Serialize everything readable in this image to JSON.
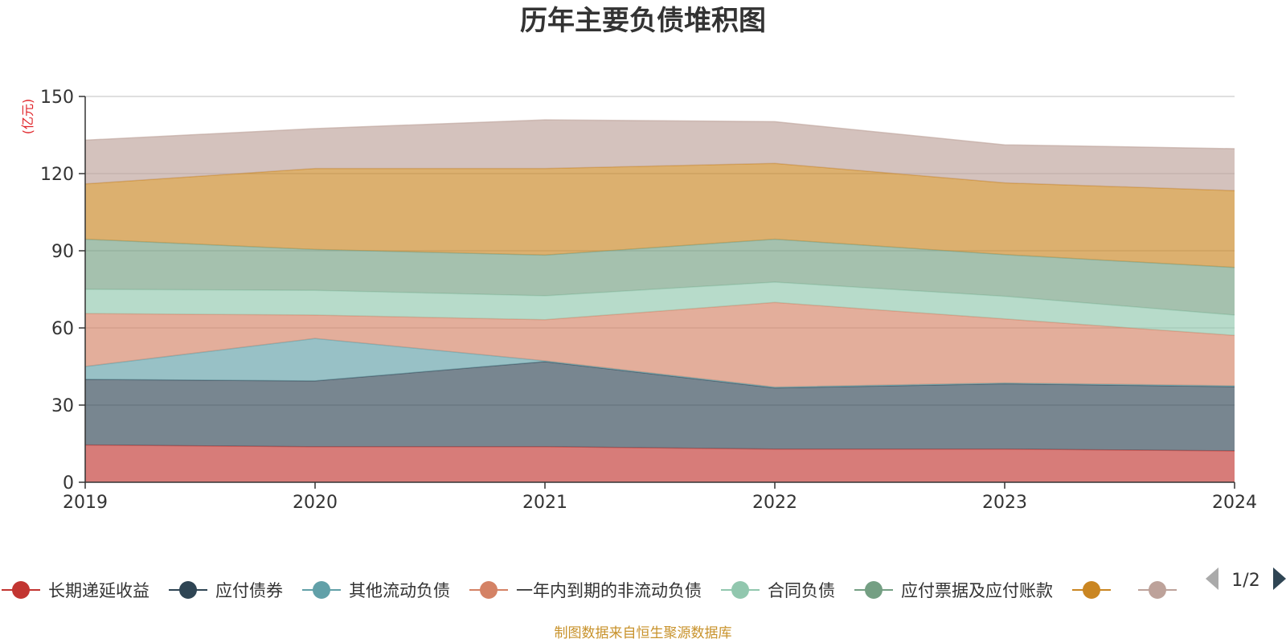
{
  "chart_data": {
    "type": "area",
    "title": "历年主要负债堆积图",
    "unit_label": "(亿元)",
    "source": "制图数据来自恒生聚源数据库",
    "x": [
      "2019",
      "2020",
      "2021",
      "2022",
      "2023",
      "2024"
    ],
    "ylim": [
      0,
      150
    ],
    "yticks": [
      0,
      30,
      60,
      90,
      120,
      150
    ],
    "stacked": true,
    "grid": true,
    "legend_position": "bottom",
    "legend_page": "1/2",
    "series": [
      {
        "name": "长期递延收益",
        "color": "#c23531",
        "values": [
          14.5,
          13.8,
          13.8,
          12.9,
          12.9,
          12.2
        ]
      },
      {
        "name": "应付债券",
        "color": "#2f4554",
        "values": [
          25.5,
          25.6,
          33.1,
          23.8,
          25.4,
          25.0
        ]
      },
      {
        "name": "其他流动负债",
        "color": "#61a0a8",
        "values": [
          5.0,
          16.5,
          0.3,
          0.3,
          0.3,
          0.3
        ]
      },
      {
        "name": "一年内到期的非流动负债",
        "color": "#d48265",
        "values": [
          20.6,
          9.1,
          16.0,
          32.9,
          24.9,
          19.6
        ]
      },
      {
        "name": "合同负债",
        "color": "#91c7ae",
        "values": [
          9.4,
          9.6,
          9.3,
          7.9,
          8.8,
          7.9
        ]
      },
      {
        "name": "应付票据及应付账款",
        "color": "#749f83",
        "values": [
          19.5,
          15.9,
          15.8,
          16.7,
          16.2,
          18.5
        ]
      },
      {
        "name": "",
        "color": "#ca8622",
        "values": [
          21.5,
          31.5,
          33.7,
          29.5,
          27.9,
          29.9
        ]
      },
      {
        "name": "",
        "color": "#bda29a",
        "values": [
          17.0,
          15.5,
          18.9,
          16.2,
          14.8,
          16.3
        ]
      }
    ]
  }
}
